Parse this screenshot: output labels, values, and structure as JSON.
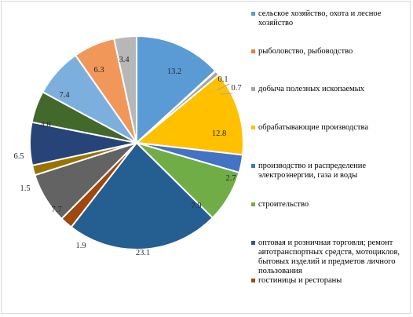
{
  "chart_data": {
    "type": "pie",
    "title": "",
    "series": [
      {
        "values": [
          13.2,
          0.1,
          0.7,
          12.8,
          2.7,
          7.9,
          23.1,
          1.9,
          7.7,
          1.5,
          6.5,
          4.8,
          7.4,
          6.3,
          3.4
        ],
        "colors": [
          "#5b9bd5",
          "#ed7d31",
          "#a5a5a5",
          "#ffc000",
          "#4472c4",
          "#70ad47",
          "#255e91",
          "#9e480e",
          "#636363",
          "#997300",
          "#264478",
          "#43682b",
          "#7cafdd",
          "#f1975a",
          "#b7b7b7"
        ],
        "labels": [
          "13.2",
          "0.1",
          "0.7",
          "12.8",
          "2.7",
          "7.9",
          "23.1",
          "1.9",
          "7.7",
          "1.5",
          "6.5",
          "4.8",
          "7.4",
          "6.3",
          "3.4"
        ]
      }
    ],
    "legend": {
      "placement": "right",
      "entries": [
        {
          "label": "сельское хозяйство, охота и лесное хозяйство",
          "color": "#5b9bd5"
        },
        {
          "label": "рыболовство, рыбоводство",
          "color": "#ed7d31"
        },
        {
          "label": "добыча полезных ископаемых",
          "color": "#a5a5a5"
        },
        {
          "label": "обрабатывающие производства",
          "color": "#ffc000"
        },
        {
          "label": "производство и распределение электроэнергии, газа и воды",
          "color": "#4472c4"
        },
        {
          "label": "строительство",
          "color": "#70ad47"
        },
        {
          "label": "оптовая и розничная торговля; ремонт автотранспортных средств, мотоциклов, бытовых изделий и предметов личного пользования",
          "color": "#255e91"
        },
        {
          "label": "гостиницы и рестораны",
          "color": "#9e480e"
        }
      ]
    }
  }
}
